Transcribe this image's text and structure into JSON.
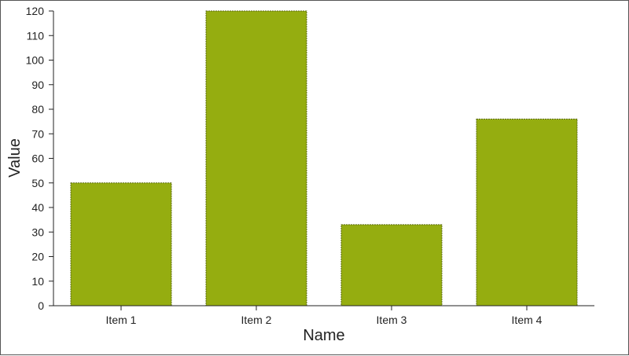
{
  "chart_data": {
    "type": "bar",
    "categories": [
      "Item 1",
      "Item 2",
      "Item 3",
      "Item 4"
    ],
    "values": [
      50,
      120,
      33,
      76
    ],
    "xlabel": "Name",
    "ylabel": "Value",
    "ylim": [
      0,
      120
    ],
    "yticks": [
      0,
      10,
      20,
      30,
      40,
      50,
      60,
      70,
      80,
      90,
      100,
      110,
      120
    ],
    "bar_color": "#95ad10",
    "grid": false,
    "legend": "none"
  }
}
